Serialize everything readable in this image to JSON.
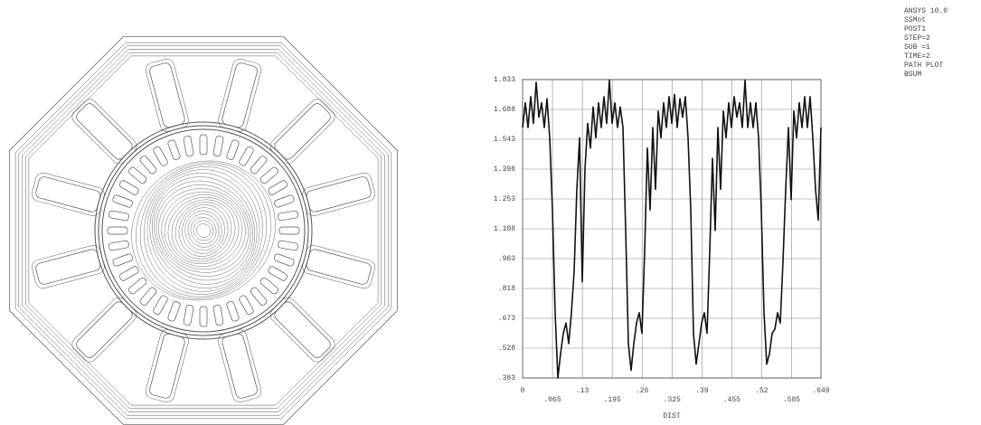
{
  "chart_data": {
    "type": "line",
    "xlabel": "DIST",
    "annotations": [
      "ANSYS 10.0",
      "SSMot",
      "POST1",
      "STEP=2",
      "SUB =1",
      "TIME=2",
      "PATH PLOT",
      "BSUM"
    ],
    "color": "#111111",
    "grid": true,
    "xlim": [
      0,
      0.649
    ],
    "ylim": [
      0.383,
      1.833
    ],
    "xticks": [
      0,
      {
        "value": 0.065,
        "label": ".065"
      },
      {
        "value": 0.13,
        "label": ".13"
      },
      {
        "value": 0.195,
        "label": ".195"
      },
      {
        "value": 0.26,
        "label": ".26"
      },
      {
        "value": 0.325,
        "label": ".325"
      },
      {
        "value": 0.39,
        "label": ".39"
      },
      {
        "value": 0.455,
        "label": ".455"
      },
      {
        "value": 0.52,
        "label": ".52"
      },
      {
        "value": 0.585,
        "label": ".585"
      },
      {
        "value": 0.649,
        "label": ".649"
      }
    ],
    "yticks": [
      {
        "value": 0.383,
        "label": ".383"
      },
      {
        "value": 0.528,
        "label": ".528"
      },
      {
        "value": 0.673,
        "label": ".673"
      },
      {
        "value": 0.818,
        "label": ".818"
      },
      {
        "value": 0.963,
        "label": ".963"
      },
      1.108,
      1.253,
      1.398,
      1.543,
      1.688,
      1.833
    ],
    "x": [
      0,
      0.0059,
      0.0118,
      0.0177,
      0.0236,
      0.0295,
      0.0354,
      0.0413,
      0.0472,
      0.0531,
      0.059,
      0.0649,
      0.0708,
      0.0767,
      0.0826,
      0.0885,
      0.0944,
      0.1003,
      0.1062,
      0.1121,
      0.118,
      0.1239,
      0.1298,
      0.1357,
      0.1416,
      0.1475,
      0.1534,
      0.1593,
      0.1652,
      0.1711,
      0.177,
      0.1829,
      0.1888,
      0.1947,
      0.2006,
      0.2065,
      0.2124,
      0.2183,
      0.2242,
      0.2301,
      0.236,
      0.2419,
      0.2478,
      0.2537,
      0.2596,
      0.2655,
      0.2714,
      0.2773,
      0.2832,
      0.2891,
      0.295,
      0.3009,
      0.3068,
      0.3127,
      0.3186,
      0.3245,
      0.3304,
      0.3363,
      0.3422,
      0.3481,
      0.354,
      0.3599,
      0.3658,
      0.3717,
      0.3776,
      0.3835,
      0.3894,
      0.3953,
      0.4012,
      0.4071,
      0.413,
      0.4189,
      0.4248,
      0.4307,
      0.4366,
      0.4425,
      0.4484,
      0.4543,
      0.4602,
      0.4661,
      0.472,
      0.4779,
      0.4838,
      0.4897,
      0.4956,
      0.5015,
      0.5074,
      0.5133,
      0.5192,
      0.5251,
      0.531,
      0.5369,
      0.5428,
      0.5487,
      0.5546,
      0.5605,
      0.5664,
      0.5723,
      0.5782,
      0.5841,
      0.59,
      0.5959,
      0.6018,
      0.6077,
      0.6136,
      0.6195,
      0.6254,
      0.6313,
      0.6372,
      0.6431,
      0.649
    ],
    "values": [
      1.6,
      1.72,
      1.6,
      1.75,
      1.62,
      1.82,
      1.65,
      1.72,
      1.6,
      1.74,
      1.55,
      1.2,
      0.7,
      0.383,
      0.5,
      0.6,
      0.65,
      0.55,
      0.7,
      0.9,
      1.3,
      1.55,
      0.85,
      1.4,
      1.62,
      1.5,
      1.7,
      1.55,
      1.72,
      1.6,
      1.75,
      1.62,
      1.83,
      1.62,
      1.72,
      1.6,
      1.7,
      1.6,
      1.1,
      0.55,
      0.42,
      0.55,
      0.65,
      0.7,
      0.6,
      1.0,
      1.5,
      1.2,
      1.6,
      1.3,
      1.68,
      1.55,
      1.72,
      1.6,
      1.75,
      1.62,
      1.76,
      1.6,
      1.74,
      1.65,
      1.75,
      1.55,
      1.2,
      0.6,
      0.45,
      0.55,
      0.65,
      0.7,
      0.6,
      1.0,
      1.45,
      1.1,
      1.6,
      1.3,
      1.68,
      1.55,
      1.72,
      1.6,
      1.75,
      1.65,
      1.72,
      1.6,
      1.83,
      1.6,
      1.72,
      1.6,
      1.72,
      1.55,
      1.2,
      0.7,
      0.45,
      0.5,
      0.6,
      0.62,
      0.7,
      0.65,
      0.95,
      1.3,
      1.6,
      1.25,
      1.68,
      1.55,
      1.72,
      1.6,
      1.75,
      1.6,
      1.75,
      1.55,
      1.3,
      1.15,
      1.6
    ]
  }
}
